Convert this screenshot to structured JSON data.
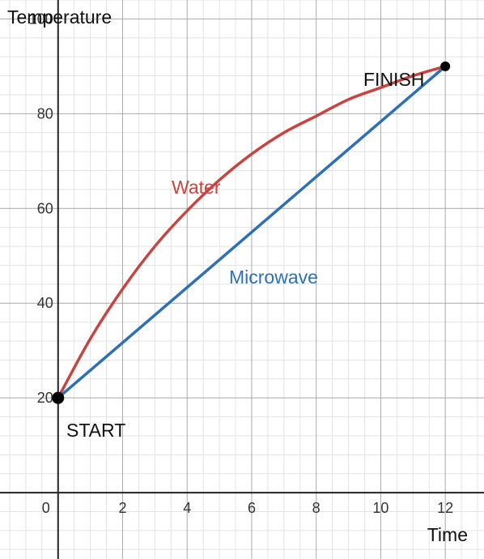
{
  "chart_data": {
    "type": "line",
    "xlabel": "Time",
    "ylabel": "Temperature",
    "xlim": [
      -1.8,
      13.2
    ],
    "ylim": [
      -14,
      104
    ],
    "x_ticks": [
      0,
      2,
      4,
      6,
      8,
      10,
      12
    ],
    "y_ticks": [
      20,
      40,
      60,
      80,
      100
    ],
    "x_tick_labels": [
      "0",
      "2",
      "4",
      "6",
      "8",
      "10",
      "12"
    ],
    "y_tick_labels": [
      "20",
      "40",
      "60",
      "80",
      "100"
    ],
    "grid": true,
    "series": [
      {
        "name": "Water",
        "color": "#c74440",
        "x": [
          0,
          1,
          2,
          3,
          4,
          5,
          6,
          7,
          8,
          9,
          10,
          11,
          12
        ],
        "y": [
          20,
          32.5,
          43,
          52,
          59.5,
          66,
          71.5,
          76,
          79.5,
          83,
          85.5,
          88,
          90
        ]
      },
      {
        "name": "Microwave",
        "color": "#2d70b3",
        "x": [
          0,
          12
        ],
        "y": [
          20,
          90
        ]
      }
    ],
    "points": [
      {
        "label": "START",
        "x": 0,
        "y": 20
      },
      {
        "label": "FINISH",
        "x": 12,
        "y": 90
      }
    ]
  }
}
